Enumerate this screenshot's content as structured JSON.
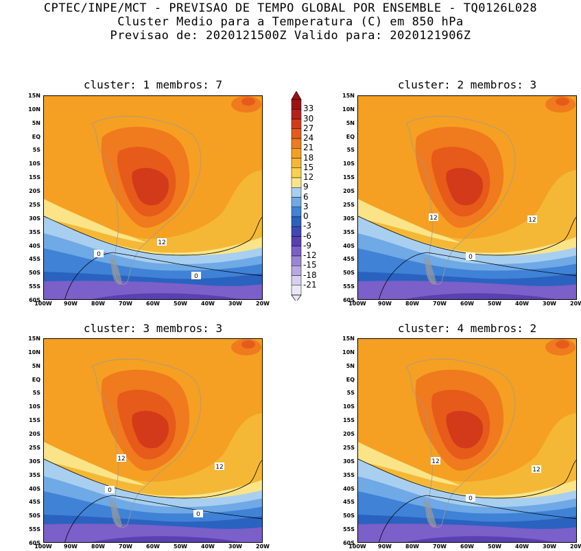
{
  "header": {
    "line1": "CPTEC/INPE/MCT - PREVISAO DE TEMPO GLOBAL POR ENSEMBLE - TQ0126L028",
    "line2": "Cluster Medio para a Temperatura (C) em 850 hPa",
    "line3": "Previsao de: 2020121500Z   Valido para: 2020121906Z"
  },
  "panels": [
    {
      "title": "cluster: 1  membros: 7",
      "contours": [
        "12",
        "0",
        "0"
      ]
    },
    {
      "title": "cluster: 2  membros: 3",
      "contours": [
        "12",
        "12",
        "0"
      ]
    },
    {
      "title": "cluster: 3  membros: 3",
      "contours": [
        "12",
        "12",
        "0",
        "0"
      ]
    },
    {
      "title": "cluster: 4  membros: 2",
      "contours": [
        "12",
        "12",
        "0"
      ]
    }
  ],
  "lat_labels": [
    "15N",
    "10N",
    "5N",
    "EQ",
    "5S",
    "10S",
    "15S",
    "20S",
    "25S",
    "30S",
    "35S",
    "40S",
    "45S",
    "50S",
    "55S",
    "60S"
  ],
  "lon_labels": [
    "100W",
    "90W",
    "80W",
    "70W",
    "60W",
    "50W",
    "40W",
    "30W",
    "20W"
  ],
  "colorbar": {
    "levels": [
      "33",
      "30",
      "27",
      "24",
      "21",
      "18",
      "15",
      "12",
      "9",
      "6",
      "3",
      "0",
      "-3",
      "-6",
      "-9",
      "-12",
      "-15",
      "-18",
      "-21"
    ],
    "colors": [
      "#a01010",
      "#b82020",
      "#d23a1a",
      "#e65a1a",
      "#f07a1e",
      "#f5a022",
      "#f5b836",
      "#fad050",
      "#fae487",
      "#a8cff0",
      "#6fa9e6",
      "#3f82d6",
      "#2a62c0",
      "#3f48b8",
      "#5a40b0",
      "#7a60c8",
      "#9a84d6",
      "#b8a8e2",
      "#d8cff0",
      "#ece6f7"
    ]
  },
  "palette": {
    "orange": "#f5a022",
    "orange_light": "#f5b836",
    "orange_dark": "#f07a1e",
    "red": "#e65a1a",
    "red_dark": "#d23a1a",
    "yellow": "#fae487",
    "blue_light": "#a8cff0",
    "blue_mid": "#6fa9e6",
    "blue": "#3f82d6",
    "blue_dark": "#2a62c0",
    "purple": "#5a40b0",
    "purple_light": "#7a60c8"
  }
}
